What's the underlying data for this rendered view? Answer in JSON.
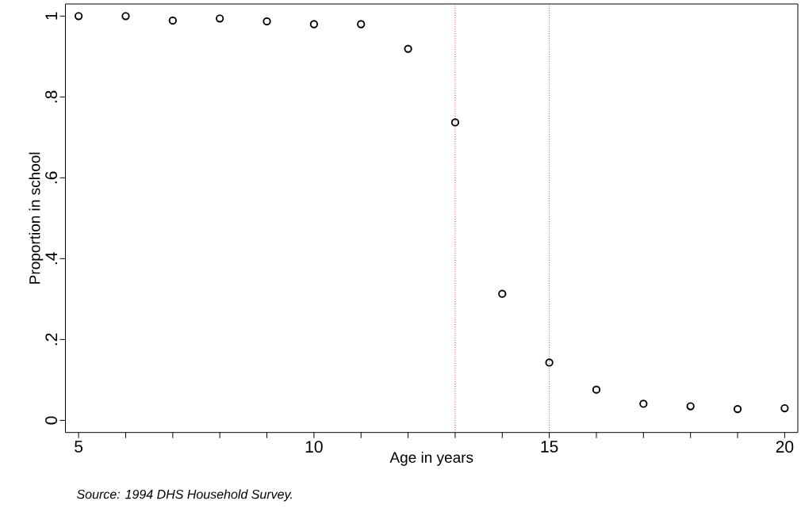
{
  "chart_data": {
    "type": "scatter",
    "xlabel": "Age in years",
    "ylabel": "Proportion in school",
    "annotations": [
      "Source: 1994 DHS Household Survey."
    ],
    "x": [
      5,
      6,
      7,
      8,
      9,
      10,
      11,
      12,
      13,
      14,
      15,
      16,
      17,
      18,
      19,
      20
    ],
    "series": [
      {
        "color": "#000000",
        "values": [
          1.0,
          1.0,
          0.989,
          0.994,
          0.987,
          0.98,
          0.98,
          0.919,
          0.737,
          0.313,
          0.143,
          0.076,
          0.041,
          0.035,
          0.028,
          0.03
        ]
      }
    ],
    "marker": "circle",
    "xlim": [
      4.72,
      20.28
    ],
    "ylim": [
      -0.03,
      1.03
    ],
    "xticks": [
      5,
      {
        "value": 6,
        "label": null
      },
      {
        "value": 7,
        "label": null
      },
      {
        "value": 8,
        "label": null
      },
      {
        "value": 9,
        "label": null
      },
      10,
      {
        "value": 11,
        "label": null
      },
      {
        "value": 12,
        "label": null
      },
      {
        "value": 13,
        "label": null
      },
      {
        "value": 14,
        "label": null
      },
      15,
      {
        "value": 16,
        "label": null
      },
      {
        "value": 17,
        "label": null
      },
      {
        "value": 18,
        "label": null
      },
      {
        "value": 19,
        "label": null
      },
      20
    ],
    "yticks": [
      0,
      {
        "value": 0.2,
        "label": ".2"
      },
      {
        "value": 0.4,
        "label": ".4"
      },
      {
        "value": 0.6,
        "label": ".6"
      },
      {
        "value": 0.8,
        "label": ".8"
      },
      1
    ],
    "ref_lines": [
      {
        "axis": "x",
        "value": 13,
        "color": "#ff0000",
        "line_style": "dotted"
      },
      {
        "axis": "x",
        "value": 15,
        "color": "#555555",
        "line_style": "dotted"
      }
    ],
    "grid": false
  }
}
